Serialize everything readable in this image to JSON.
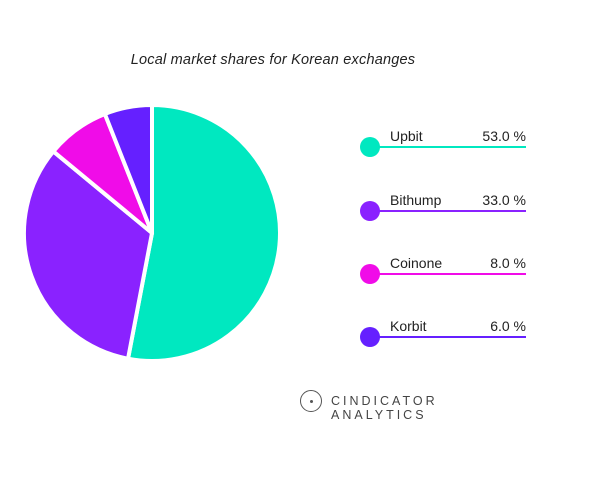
{
  "chart_data": {
    "type": "pie",
    "title": "Local market shares for Korean exchanges",
    "slices": [
      {
        "label": "Upbit",
        "value": 53.0,
        "display": "53.0 %",
        "color": "#00e8c0"
      },
      {
        "label": "Bithump",
        "value": 33.0,
        "display": "33.0 %",
        "color": "#8a22ff"
      },
      {
        "label": "Coinone",
        "value": 8.0,
        "display": "8.0 %",
        "color": "#f00ce8"
      },
      {
        "label": "Korbit",
        "value": 6.0,
        "display": "6.0 %",
        "color": "#6520ff"
      }
    ],
    "legend_position": "right"
  },
  "brand": {
    "name": "CINDICATOR ANALYTICS",
    "icon": "cindicator-logo-icon"
  }
}
